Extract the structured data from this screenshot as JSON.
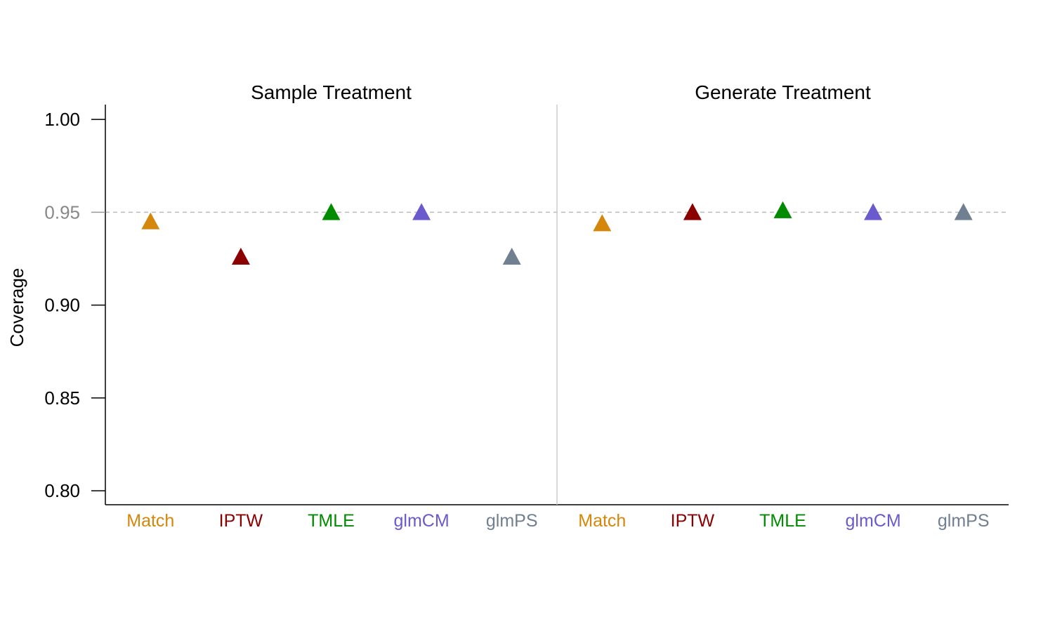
{
  "chart_data": {
    "type": "scatter",
    "ylabel": "Coverage",
    "ylim": [
      0.7925,
      1.008
    ],
    "yticks": [
      {
        "value": 1.0,
        "label": "1.00"
      },
      {
        "value": 0.95,
        "label": "0.95"
      },
      {
        "value": 0.9,
        "label": "0.90"
      },
      {
        "value": 0.85,
        "label": "0.85"
      },
      {
        "value": 0.8,
        "label": "0.80"
      }
    ],
    "reference_line": {
      "value": 0.95,
      "style": "dashed",
      "color": "#bbbbbb"
    },
    "marker": "triangle",
    "categories": [
      "Match",
      "IPTW",
      "TMLE",
      "glmCM",
      "glmPS"
    ],
    "colors": [
      "#d4870a",
      "#8b0000",
      "#008b00",
      "#6a5acd",
      "#708090"
    ],
    "panels": [
      {
        "title": "Sample Treatment",
        "values": [
          0.945,
          0.926,
          0.95,
          0.95,
          0.926
        ]
      },
      {
        "title": "Generate Treatment",
        "values": [
          0.944,
          0.95,
          0.951,
          0.95,
          0.95
        ]
      }
    ]
  }
}
